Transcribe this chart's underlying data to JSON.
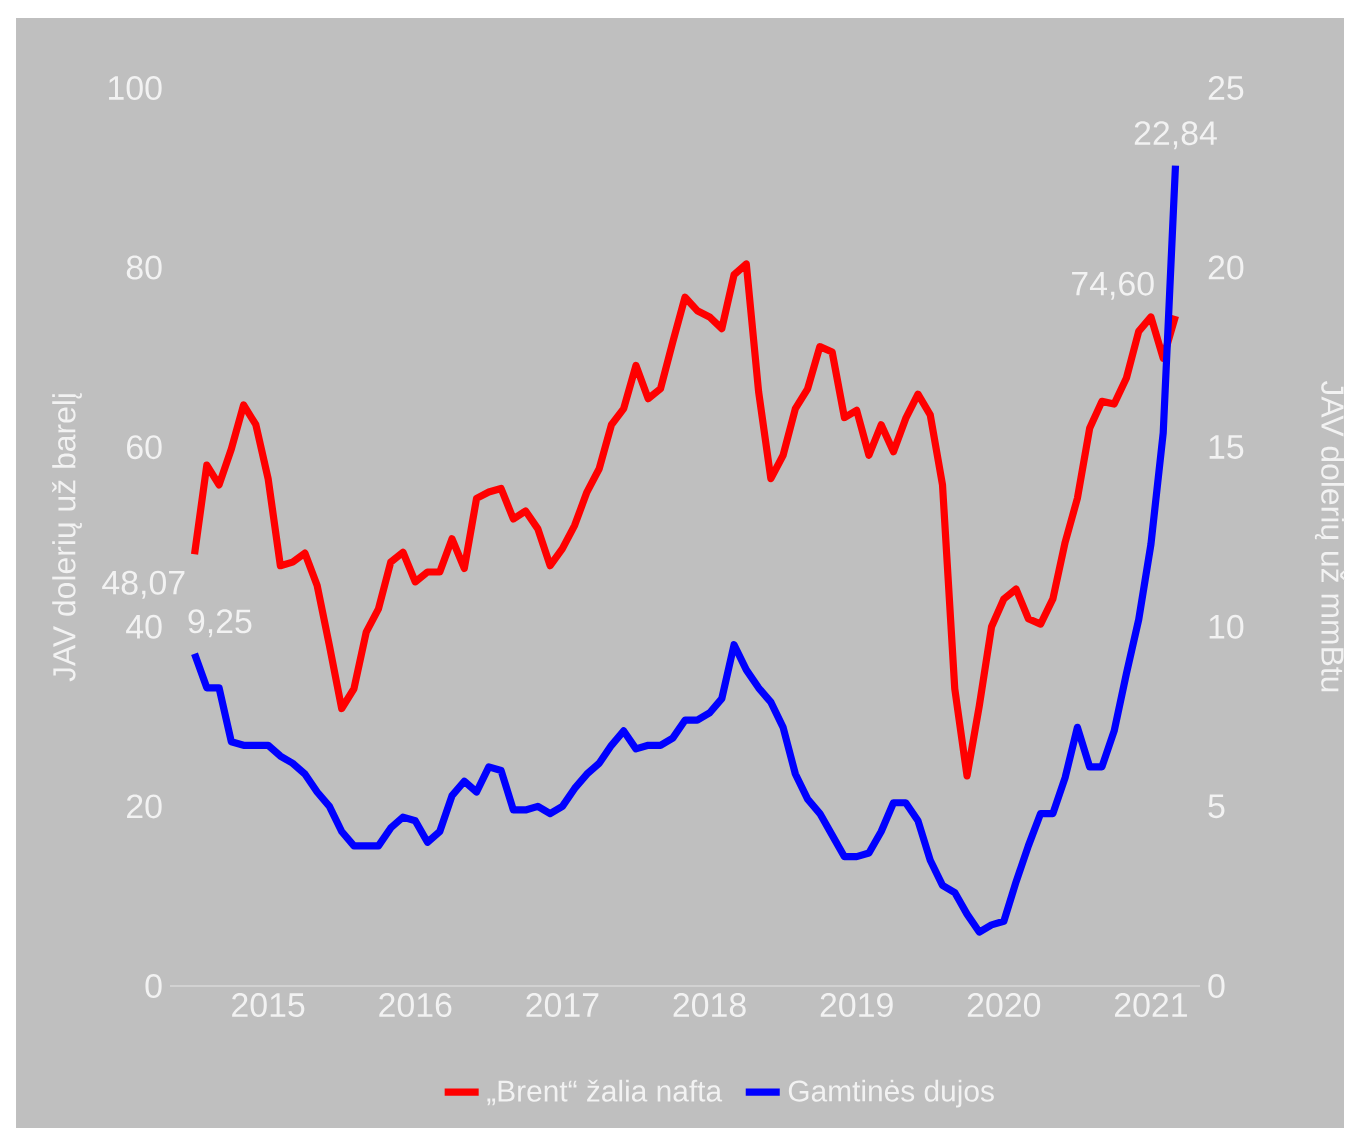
{
  "chart_data": {
    "type": "line",
    "ylabel": "JAV dolerių už barelį",
    "y2label": "JAV dolerių už mmBtu",
    "x": [
      "2015-01",
      "2015-02",
      "2015-03",
      "2015-04",
      "2015-05",
      "2015-06",
      "2015-07",
      "2015-08",
      "2015-09",
      "2015-10",
      "2015-11",
      "2015-12",
      "2016-01",
      "2016-02",
      "2016-03",
      "2016-04",
      "2016-05",
      "2016-06",
      "2016-07",
      "2016-08",
      "2016-09",
      "2016-10",
      "2016-11",
      "2016-12",
      "2017-01",
      "2017-02",
      "2017-03",
      "2017-04",
      "2017-05",
      "2017-06",
      "2017-07",
      "2017-08",
      "2017-09",
      "2017-10",
      "2017-11",
      "2017-12",
      "2018-01",
      "2018-02",
      "2018-03",
      "2018-04",
      "2018-05",
      "2018-06",
      "2018-07",
      "2018-08",
      "2018-09",
      "2018-10",
      "2018-11",
      "2018-12",
      "2019-01",
      "2019-02",
      "2019-03",
      "2019-04",
      "2019-05",
      "2019-06",
      "2019-07",
      "2019-08",
      "2019-09",
      "2019-10",
      "2019-11",
      "2019-12",
      "2020-01",
      "2020-02",
      "2020-03",
      "2020-04",
      "2020-05",
      "2020-06",
      "2020-07",
      "2020-08",
      "2020-09",
      "2020-10",
      "2020-11",
      "2020-12",
      "2021-01",
      "2021-02",
      "2021-03",
      "2021-04",
      "2021-05",
      "2021-06",
      "2021-07",
      "2021-08",
      "2021-09"
    ],
    "xlim": [
      "2014-11",
      "2021-11"
    ],
    "xticks": [
      {
        "value": "2015-07",
        "label": "2015"
      },
      {
        "value": "2016-07",
        "label": "2016"
      },
      {
        "value": "2017-07",
        "label": "2017"
      },
      {
        "value": "2018-07",
        "label": "2018"
      },
      {
        "value": "2019-07",
        "label": "2019"
      },
      {
        "value": "2020-07",
        "label": "2020"
      },
      {
        "value": "2021-07",
        "label": "2021"
      }
    ],
    "ylim": [
      0,
      100
    ],
    "yticks": [
      0,
      20,
      40,
      60,
      80,
      100
    ],
    "y2lim": [
      0,
      25
    ],
    "y2ticks": [
      0,
      5,
      10,
      15,
      20,
      25
    ],
    "legend": "bottom",
    "series": [
      {
        "name": "„Brent“ žalia nafta",
        "color": "#ff0000",
        "values": [
          48.07,
          58.0,
          55.8,
          59.8,
          64.7,
          62.5,
          56.5,
          46.8,
          47.2,
          48.2,
          44.6,
          37.9,
          30.9,
          33.1,
          39.4,
          42.0,
          47.2,
          48.3,
          45.0,
          46.1,
          46.1,
          49.8,
          46.5,
          54.3,
          55.0,
          55.4,
          52.0,
          52.9,
          50.9,
          46.8,
          48.7,
          51.3,
          55.0,
          57.6,
          62.5,
          64.3,
          69.1,
          65.4,
          66.5,
          71.7,
          76.7,
          75.2,
          74.5,
          73.2,
          79.2,
          80.4,
          66.2,
          56.5,
          59.1,
          64.3,
          66.5,
          71.2,
          70.6,
          63.3,
          64.1,
          59.1,
          62.5,
          59.5,
          63.2,
          65.9,
          63.6,
          55.8,
          33.1,
          23.4,
          31.2,
          40.0,
          43.1,
          44.2,
          40.9,
          40.3,
          43.1,
          49.4,
          54.3,
          62.1,
          65.1,
          64.8,
          67.7,
          72.9,
          74.5,
          69.9,
          74.6
        ],
        "value_labels": [
          "48,07",
          null,
          null,
          null,
          null,
          null,
          null,
          null,
          null,
          null,
          null,
          null,
          null,
          null,
          null,
          null,
          null,
          null,
          null,
          null,
          null,
          null,
          null,
          null,
          null,
          null,
          null,
          null,
          null,
          null,
          null,
          null,
          null,
          null,
          null,
          null,
          null,
          null,
          null,
          null,
          null,
          null,
          null,
          null,
          null,
          null,
          null,
          null,
          null,
          null,
          null,
          null,
          null,
          null,
          null,
          null,
          null,
          null,
          null,
          null,
          null,
          null,
          null,
          null,
          null,
          null,
          null,
          null,
          null,
          null,
          null,
          null,
          null,
          null,
          null,
          null,
          null,
          null,
          null,
          null,
          "74,60"
        ]
      },
      {
        "name": "Gamtinės dujos",
        "color": "#0000ff",
        "axis": "y2",
        "values": [
          9.25,
          8.3,
          8.3,
          6.8,
          6.7,
          6.7,
          6.7,
          6.4,
          6.2,
          5.9,
          5.4,
          5.0,
          4.3,
          3.9,
          3.9,
          3.9,
          4.4,
          4.7,
          4.6,
          4.0,
          4.3,
          5.3,
          5.7,
          5.4,
          6.1,
          6.0,
          4.9,
          4.9,
          5.0,
          4.8,
          5.0,
          5.5,
          5.9,
          6.2,
          6.7,
          7.1,
          6.6,
          6.7,
          6.7,
          6.9,
          7.4,
          7.4,
          7.6,
          8.0,
          9.5,
          8.8,
          8.3,
          7.9,
          7.2,
          5.9,
          5.2,
          4.8,
          4.2,
          3.6,
          3.6,
          3.7,
          4.3,
          5.1,
          5.1,
          4.6,
          3.5,
          2.8,
          2.6,
          2.0,
          1.5,
          1.7,
          1.8,
          2.9,
          3.9,
          4.8,
          4.8,
          5.8,
          7.2,
          6.1,
          6.1,
          7.1,
          8.7,
          10.2,
          12.3,
          15.4,
          22.84
        ],
        "value_labels": [
          "9,25",
          null,
          null,
          null,
          null,
          null,
          null,
          null,
          null,
          null,
          null,
          null,
          null,
          null,
          null,
          null,
          null,
          null,
          null,
          null,
          null,
          null,
          null,
          null,
          null,
          null,
          null,
          null,
          null,
          null,
          null,
          null,
          null,
          null,
          null,
          null,
          null,
          null,
          null,
          null,
          null,
          null,
          null,
          null,
          null,
          null,
          null,
          null,
          null,
          null,
          null,
          null,
          null,
          null,
          null,
          null,
          null,
          null,
          null,
          null,
          null,
          null,
          null,
          null,
          null,
          null,
          null,
          null,
          null,
          null,
          null,
          null,
          null,
          null,
          null,
          null,
          null,
          null,
          null,
          null,
          "22,84"
        ]
      }
    ]
  }
}
